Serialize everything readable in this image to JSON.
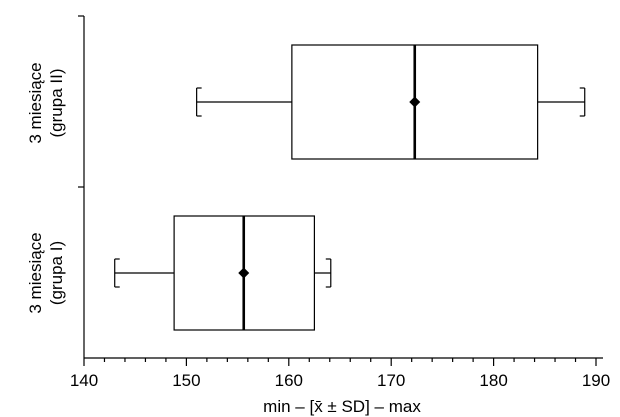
{
  "chart_data": {
    "type": "boxplot",
    "xlabel": "min – [x̄ ± SD] – max",
    "xlim": [
      140,
      190
    ],
    "x_ticks": [
      "140",
      "150",
      "160",
      "170",
      "180",
      "190"
    ],
    "minor_step": 2,
    "orientation": "horizontal",
    "series": [
      {
        "label_lines": [
          "3 miesiące",
          "(grupa II)"
        ],
        "min": 151,
        "q1": 160.3,
        "mean": 172.3,
        "q3": 184.3,
        "max": 188.9
      },
      {
        "label_lines": [
          "3 miesiące",
          "(grupa I)"
        ],
        "min": 143,
        "q1": 148.8,
        "mean": 155.6,
        "q3": 162.5,
        "max": 164.1
      }
    ]
  }
}
